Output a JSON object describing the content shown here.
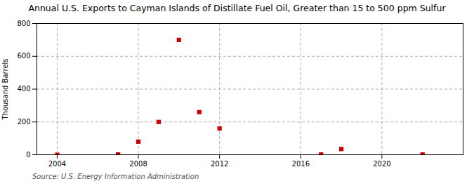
{
  "chart_data": {
    "type": "scatter",
    "title": "Annual U.S. Exports to Cayman Islands of Distillate Fuel Oil, Greater than 15 to 500 ppm Sulfur",
    "ylabel": "Thousand Barrels",
    "source": "Source: U.S. Energy Information Administration",
    "x": [
      2004,
      2007,
      2008,
      2009,
      2010,
      2011,
      2012,
      2017,
      2018,
      2022
    ],
    "values": [
      0,
      2,
      80,
      200,
      700,
      260,
      160,
      2,
      35,
      2
    ],
    "color": "#cc0000",
    "marker": "square",
    "xlim": [
      2003,
      2024
    ],
    "xticks": [
      2004,
      2008,
      2012,
      2016,
      2020
    ],
    "ylim": [
      0,
      800
    ],
    "yticks": [
      0,
      200,
      400,
      600,
      800
    ],
    "grid": true
  }
}
